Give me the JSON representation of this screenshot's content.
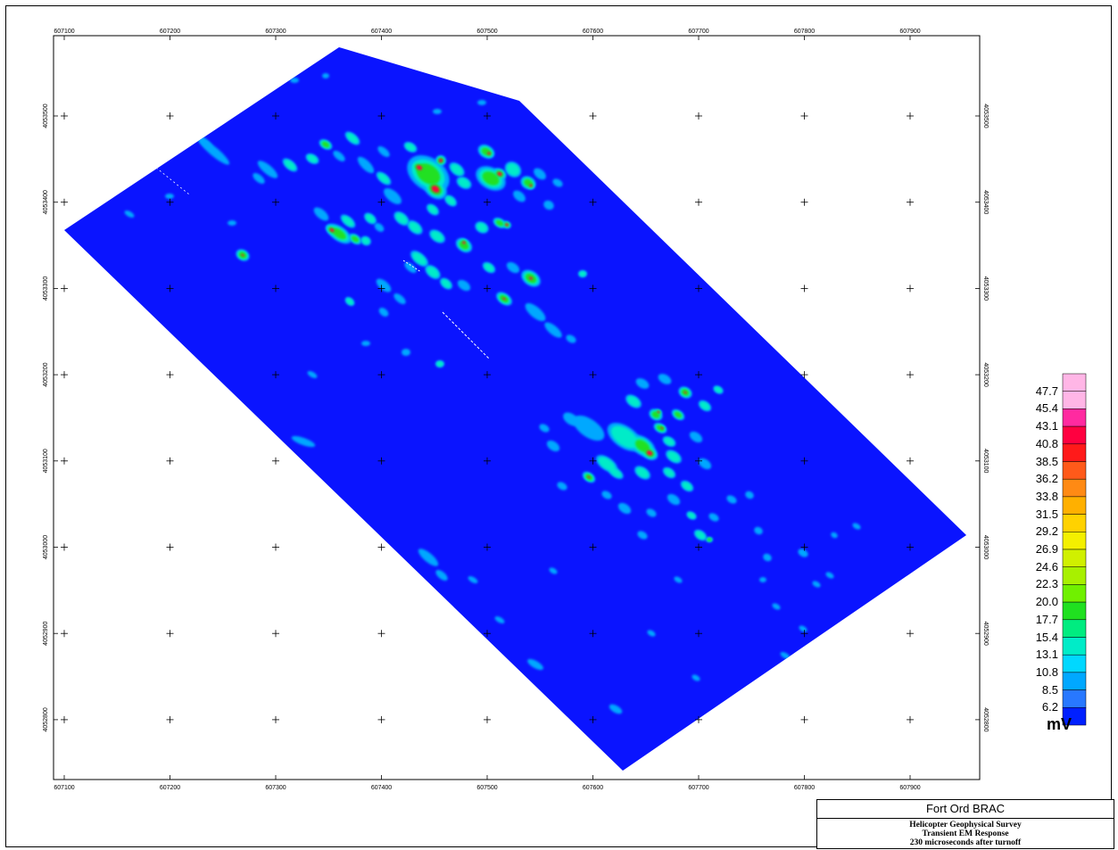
{
  "map": {
    "x_ticks": [
      "607100",
      "607200",
      "607300",
      "607400",
      "607500",
      "607600",
      "607700",
      "607800",
      "607900"
    ],
    "y_ticks": [
      "4053500",
      "4053400",
      "4053300",
      "4053200",
      "4053100",
      "4053000",
      "4052900",
      "4052800"
    ]
  },
  "colorbar": {
    "unit": "mV",
    "labels": [
      "47.7",
      "45.4",
      "43.1",
      "40.8",
      "38.5",
      "36.2",
      "33.8",
      "31.5",
      "29.2",
      "26.9",
      "24.6",
      "22.3",
      "20.0",
      "17.7",
      "15.4",
      "13.1",
      "10.8",
      "8.5",
      "6.2"
    ],
    "colors": [
      "#ffb6e6",
      "#ff2aa0",
      "#ff0040",
      "#ff1a1a",
      "#ff5a1a",
      "#ff8a14",
      "#ffb000",
      "#ffd200",
      "#f4f000",
      "#d0f000",
      "#a8f000",
      "#70f000",
      "#20e020",
      "#00ec80",
      "#00ecc8",
      "#00d8ff",
      "#00a8ff",
      "#2878ff",
      "#0020ff"
    ]
  },
  "title_block": {
    "title": "Fort Ord BRAC",
    "line1": "Helicopter Geophysical Survey",
    "line2": "Transient EM Response",
    "line3": "230 microseconds after turnoff"
  },
  "colors": {
    "background_field": "#0a14ff"
  }
}
